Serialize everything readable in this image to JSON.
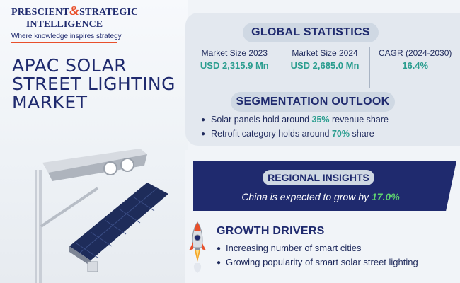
{
  "logo": {
    "name_part1": "PRESCIENT",
    "ampersand": "&",
    "name_part2": "STRATEGIC",
    "name_line2": "INTELLIGENCE",
    "tagline": "Where knowledge inspires strategy"
  },
  "title": "APAC SOLAR STREET LIGHTING MARKET",
  "global_statistics": {
    "heading": "GLOBAL STATISTICS",
    "stats": [
      {
        "label": "Market Size 2023",
        "value": "USD 2,315.9 Mn"
      },
      {
        "label": "Market Size 2024",
        "value": "USD 2,685.0 Mn"
      },
      {
        "label": "CAGR (2024-2030)",
        "value": "16.4%"
      }
    ]
  },
  "segmentation": {
    "heading": "SEGMENTATION OUTLOOK",
    "items": [
      {
        "prefix": "Solar panels hold around ",
        "highlight": "35%",
        "suffix": " revenue share"
      },
      {
        "prefix": "Retrofit category holds around ",
        "highlight": "70%",
        "suffix": " share"
      }
    ]
  },
  "regional": {
    "heading": "REGIONAL INSIGHTS",
    "prefix": "China is expected to grow by ",
    "highlight": "17.0%"
  },
  "growth_drivers": {
    "heading": "GROWTH DRIVERS",
    "items": [
      "Increasing number of smart cities",
      "Growing popularity of smart solar street lighting"
    ]
  },
  "colors": {
    "navy": "#1f2a6e",
    "accent_orange": "#e8502c",
    "teal_highlight": "#2a9d8f",
    "green_highlight": "#5ed36f",
    "pill_bg": "#cfd8e3"
  },
  "icons": [
    "rocket-icon",
    "solar-street-light-illustration"
  ]
}
